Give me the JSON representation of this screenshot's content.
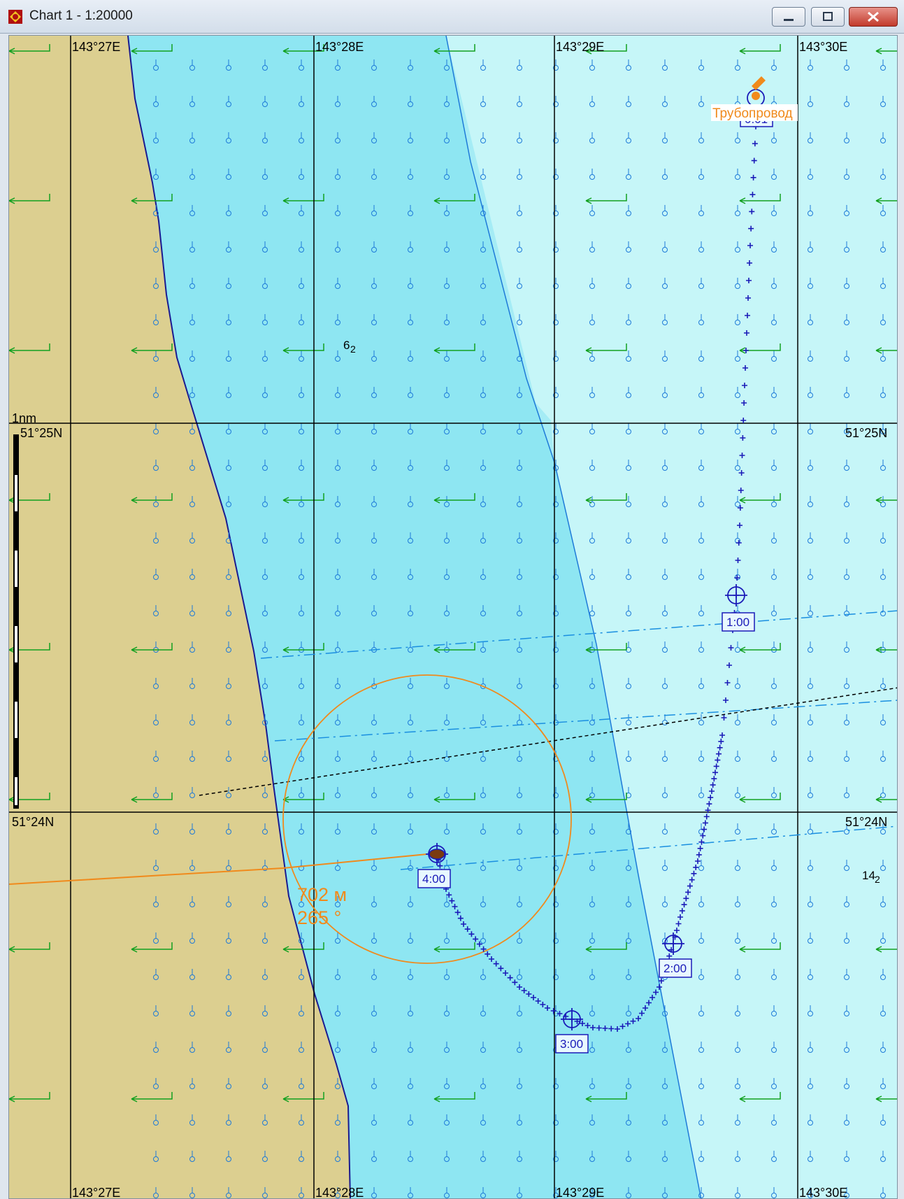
{
  "window": {
    "title": "Chart 1 - 1:20000",
    "controls": [
      "minimize",
      "maximize",
      "close"
    ]
  },
  "chart": {
    "scale_label": "1nm",
    "longitude_labels": [
      "143°27E",
      "143°28E",
      "143°29E",
      "143°30E"
    ],
    "latitude_labels": [
      "51°25N",
      "51°24N"
    ],
    "depth_soundings": [
      {
        "value": "6",
        "sub": "2"
      },
      {
        "value": "14",
        "sub": "2"
      }
    ],
    "target_label": "Трубопровод",
    "target_box_label": "0:01",
    "waypoint_labels": [
      "1:00",
      "2:00",
      "3:00",
      "4:00"
    ],
    "bearing": {
      "distance": "702 м",
      "angle": "265 °"
    },
    "colors": {
      "land": "#dccf90",
      "shallow_water": "#8ee6f2",
      "mid_water": "#a5ecf5",
      "deep_water": "#c6f6f8",
      "track": "#1a1ab8",
      "current_arrows": "#12a020",
      "range_ring": "#f08a1c",
      "grid": "#000000"
    }
  }
}
